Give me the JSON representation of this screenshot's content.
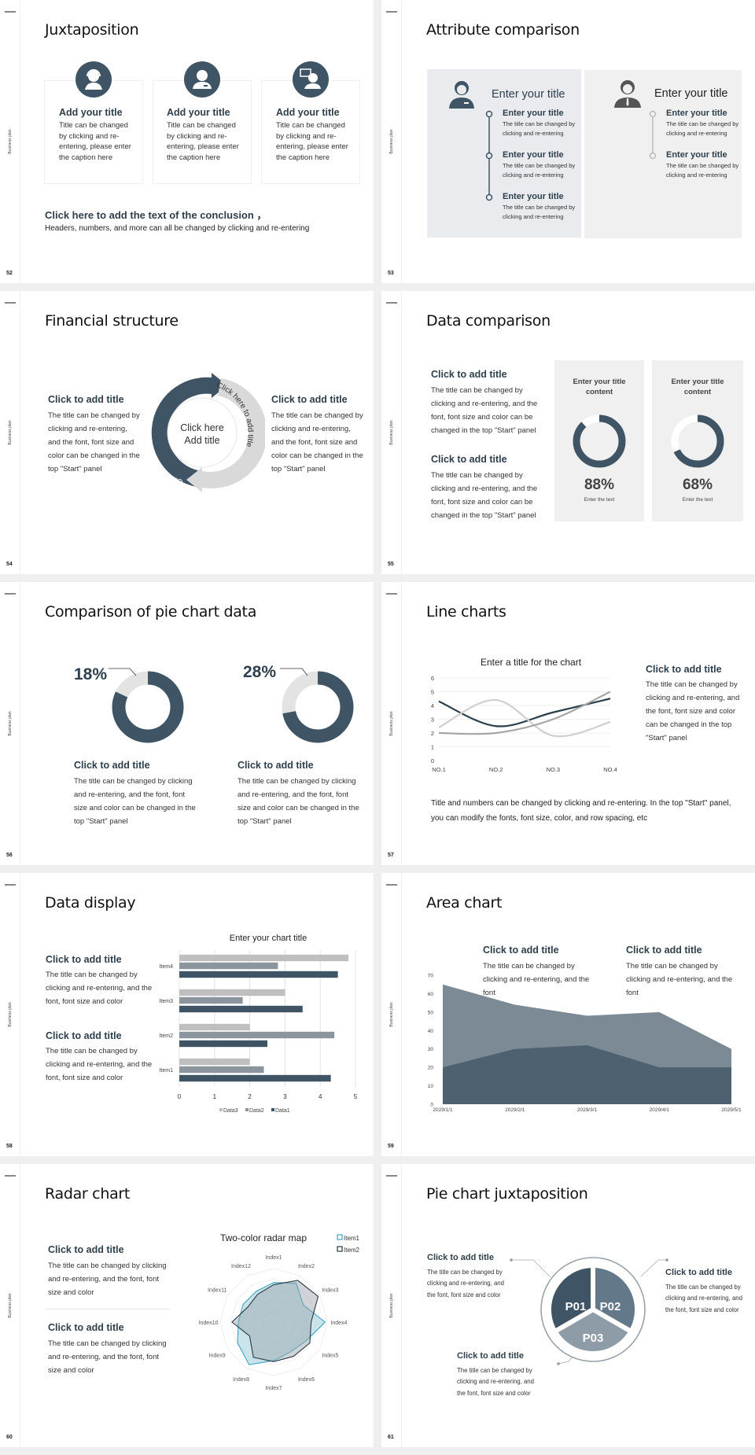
{
  "sidebar_label": "Business plan",
  "colors": {
    "primary": "#3f5565",
    "mid": "#637888",
    "light": "#8e9ca7",
    "pale": "#e3e3e3",
    "panel": "#f0f0f0",
    "teal": "#3aa6c0"
  },
  "s52": {
    "number": "52",
    "title": "Juxtaposition",
    "cards": [
      {
        "icon": "customer-service-icon",
        "title": "Add your title",
        "body": "Title can be changed by clicking and re-entering, please enter the caption here"
      },
      {
        "icon": "staff-icon",
        "title": "Add your title",
        "body": "Title can be changed by clicking and re-entering, please enter the caption here"
      },
      {
        "icon": "consultant-chat-icon",
        "title": "Add your title",
        "body": "Title can be changed by clicking and re-entering, please enter the caption here"
      }
    ],
    "conclusion_title": "Click here to add the text of the conclusion ，",
    "conclusion_body": "Headers, numbers, and more can all be changed by clicking and re-entering"
  },
  "s53": {
    "number": "53",
    "title": "Attribute comparison",
    "left": {
      "heading": "Enter your title",
      "items": [
        {
          "title": "Enter your title",
          "body": "The title can be changed by clicking and re-entering"
        },
        {
          "title": "Enter your title",
          "body": "The title can be changed by clicking and re-entering"
        },
        {
          "title": "Enter your title",
          "body": "The title can be changed by clicking and re-entering"
        }
      ]
    },
    "right": {
      "heading": "Enter your title",
      "items": [
        {
          "title": "Enter your title",
          "body": "The title can be changed by clicking and re-entering"
        },
        {
          "title": "Enter your title",
          "body": "The title can be changed by clicking and re-entering"
        }
      ]
    }
  },
  "s54": {
    "number": "54",
    "title": "Financial structure",
    "left": {
      "title": "Click to add title",
      "body": "The title can be changed by clicking and re-entering, and the font, font size and color can be changed in the top \"Start\" panel"
    },
    "right": {
      "title": "Click to add title",
      "body": "The title can be changed by clicking and re-entering, and the font, font size and color can be changed in the top \"Start\" panel"
    },
    "arc_left": "Click here to add title",
    "arc_right": "Click here to add title",
    "center_line1": "Click here",
    "center_line2": "Add title"
  },
  "s55": {
    "number": "55",
    "title": "Data comparison",
    "blocks": [
      {
        "title": "Click to add title",
        "body": "The title can be changed by clicking and re-entering, and the font, font size and color can be changed in the top \"Start\" panel"
      },
      {
        "title": "Click to add title",
        "body": "The title can be changed by clicking and re-entering, and the font, font size and color can be changed in the top \"Start\" panel"
      }
    ],
    "panels": [
      {
        "title": "Enter your title content",
        "percent": 88,
        "label": "88%",
        "caption": "Enter the text"
      },
      {
        "title": "Enter your title content",
        "percent": 68,
        "label": "68%",
        "caption": "Enter the text"
      }
    ]
  },
  "s56": {
    "number": "56",
    "title": "Comparison of pie chart data",
    "pies": [
      {
        "percent": 18,
        "label": "18%",
        "title": "Click to add title",
        "body": "The title can be changed by clicking and re-entering, and the font, font size and color can be changed in the top \"Start\" panel"
      },
      {
        "percent": 28,
        "label": "28%",
        "title": "Click to add title",
        "body": "The title can be changed by clicking and re-entering, and the font, font size and color can be changed in the top \"Start\" panel"
      }
    ]
  },
  "s57": {
    "number": "57",
    "title": "Line charts",
    "side_title": "Click to add title",
    "side_body": "The title can be changed by clicking and re-entering, and the font, font size and color can be changed in the top \"Start\" panel",
    "footer": "Title and numbers can be changed by clicking and re-entering. In the top \"Start\" panel, you can modify the fonts, font size, color, and row spacing, etc"
  },
  "s58": {
    "number": "58",
    "title": "Data display",
    "blocks": [
      {
        "title": "Click to add title",
        "body": "The title can be changed by clicking and re-entering, and the font, font size and color"
      },
      {
        "title": "Click to add title",
        "body": "The title can be changed by clicking and re-entering, and the font, font size and color"
      }
    ]
  },
  "s59": {
    "number": "59",
    "title": "Area chart",
    "blocks": [
      {
        "title": "Click to add title",
        "body": "The title can be changed by clicking and re-entering, and the font"
      },
      {
        "title": "Click to add title",
        "body": "The title can be changed by clicking and re-entering, and the font"
      }
    ]
  },
  "s60": {
    "number": "60",
    "title": "Radar chart",
    "blocks": [
      {
        "title": "Click to add title",
        "body": "The title can be changed by clicking and re-entering, and the font, font size and color"
      },
      {
        "title": "Click to add title",
        "body": "The title can be changed by clicking and re-entering, and the font, font size and color"
      }
    ]
  },
  "s61": {
    "number": "61",
    "title": "Pie chart juxtaposition",
    "segments": [
      "P01",
      "P02",
      "P03"
    ],
    "blocks": [
      {
        "title": "Click to add title",
        "body": "The title can be changed by clicking and re-entering, and the font, font size and color"
      },
      {
        "title": "Click to add title",
        "body": "The title can be changed by clicking and re-entering, and the font, font size and color"
      },
      {
        "title": "Click to add title",
        "body": "The title can be changed by clicking and re-entering, and the font, font size and color"
      }
    ]
  },
  "chart_data": [
    {
      "type": "line",
      "title": "Enter a title for the chart",
      "categories": [
        "NO.1",
        "NO.2",
        "NO.3",
        "NO.4"
      ],
      "ylim": [
        0,
        6
      ],
      "yticks": [
        0,
        1,
        2,
        3,
        4,
        5,
        6
      ],
      "grid": true,
      "series": [
        {
          "values": [
            4.3,
            2.5,
            3.5,
            4.5
          ],
          "color": "#2b3f4c"
        },
        {
          "values": [
            2.4,
            4.4,
            1.8,
            2.8
          ],
          "color": "#d0d0d0"
        },
        {
          "values": [
            2,
            2,
            3,
            5
          ],
          "color": "#a6a6a6"
        }
      ]
    },
    {
      "type": "bar",
      "orientation": "horizontal",
      "title": "Enter your chart title",
      "categories": [
        "Item1",
        "Item2",
        "Item3",
        "Item4"
      ],
      "xlim": [
        0,
        5
      ],
      "xticks": [
        0,
        1,
        2,
        3,
        4,
        5
      ],
      "grid": true,
      "legend": "bottom",
      "series": [
        {
          "name": "Data3",
          "values": [
            2,
            2,
            3,
            4.8
          ],
          "color": "#bfbfbf"
        },
        {
          "name": "Data2",
          "values": [
            2.4,
            4.4,
            1.8,
            2.8
          ],
          "color": "#8a959e"
        },
        {
          "name": "Data1",
          "values": [
            4.3,
            2.5,
            3.5,
            4.5
          ],
          "color": "#3f5565"
        }
      ]
    },
    {
      "type": "area",
      "categories": [
        "2029/1/1",
        "2029/2/1",
        "2029/3/1",
        "2029/4/1",
        "2029/5/1"
      ],
      "ylim": [
        0,
        70
      ],
      "yticks": [
        0,
        10,
        20,
        30,
        40,
        50,
        60,
        70
      ],
      "series": [
        {
          "values": [
            65,
            54,
            48,
            50,
            30
          ],
          "color": "#7b8a95"
        },
        {
          "values": [
            20,
            30,
            32,
            20,
            20
          ],
          "color": "#4d6170"
        }
      ]
    },
    {
      "type": "radar",
      "title": "Two-color radar map",
      "categories": [
        "Index1",
        "Index2",
        "Index3",
        "Index4",
        "Index5",
        "Index6",
        "Index7",
        "Index8",
        "Index9",
        "Index10",
        "Index11",
        "Index12"
      ],
      "rlim": [
        0,
        5
      ],
      "legend": "top-right",
      "series": [
        {
          "name": "Item1",
          "values": [
            3.7,
            4.2,
            3.2,
            4.8,
            3.5,
            3.2,
            3.6,
            4.6,
            3.9,
            3.3,
            3.3,
            3.3
          ],
          "color": "#3aa6c0"
        },
        {
          "name": "Item2",
          "values": [
            3.5,
            4.5,
            4.8,
            3.5,
            3.9,
            3.7,
            3.7,
            3.8,
            2.6,
            3.9,
            2.8,
            3.0
          ],
          "color": "#2b3a45"
        }
      ]
    }
  ]
}
